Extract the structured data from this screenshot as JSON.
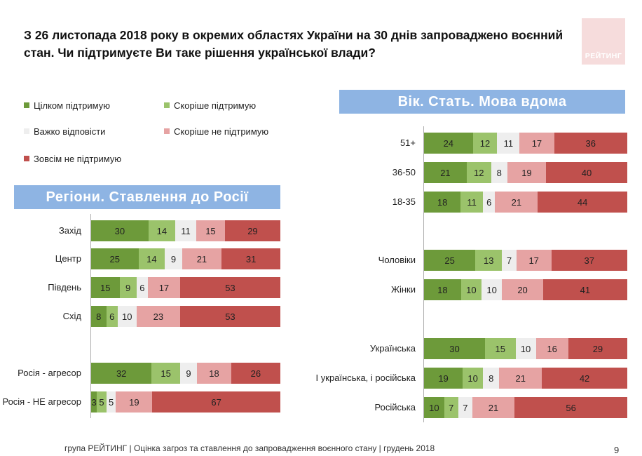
{
  "title": "З 26 листопада 2018 року в окремих областях України на 30 днів запроваджено воєнний стан. Чи підтримуєте Ви таке рішення української влади?",
  "logo_text": "РЕЙТИНГ",
  "legend": [
    {
      "label": "Цілком підтримую",
      "color": "#6d9a3a"
    },
    {
      "label": "Скоріше підтримую",
      "color": "#9bc36b"
    },
    {
      "label": "Важко відповісти",
      "color": "#eeeeee"
    },
    {
      "label": "Скоріше  не підтримую",
      "color": "#e6a3a3"
    },
    {
      "label": "Зовсім не підтримую",
      "color": "#c0504d"
    }
  ],
  "left_header": "Регіони. Ставлення до Росії",
  "right_header": "Вік. Стать. Мова вдома",
  "chart_data": [
    {
      "type": "bar",
      "orientation": "horizontal-stacked",
      "title": "Регіони. Ставлення до Росії",
      "series_names": [
        "Цілком підтримую",
        "Скоріше підтримую",
        "Важко відповісти",
        "Скоріше  не підтримую",
        "Зовсім не підтримую"
      ],
      "colors": [
        "#6d9a3a",
        "#9bc36b",
        "#eeeeee",
        "#e6a3a3",
        "#c0504d"
      ],
      "rows": [
        {
          "label": "Захід",
          "values": [
            30,
            14,
            11,
            15,
            29
          ]
        },
        {
          "label": "Центр",
          "values": [
            25,
            14,
            9,
            21,
            31
          ]
        },
        {
          "label": "Південь",
          "values": [
            15,
            9,
            6,
            17,
            53
          ]
        },
        {
          "label": "Схід",
          "values": [
            8,
            6,
            10,
            23,
            53
          ]
        },
        {
          "label": "Росія - агресор",
          "values": [
            32,
            15,
            9,
            18,
            26
          ]
        },
        {
          "label": "Росія - НЕ агресор",
          "values": [
            3,
            5,
            5,
            19,
            67
          ]
        }
      ]
    },
    {
      "type": "bar",
      "orientation": "horizontal-stacked",
      "title": "Вік. Стать. Мова вдома",
      "series_names": [
        "Цілком підтримую",
        "Скоріше підтримую",
        "Важко відповісти",
        "Скоріше  не підтримую",
        "Зовсім не підтримую"
      ],
      "colors": [
        "#6d9a3a",
        "#9bc36b",
        "#eeeeee",
        "#e6a3a3",
        "#c0504d"
      ],
      "rows": [
        {
          "label": "51+",
          "values": [
            24,
            12,
            11,
            17,
            36
          ]
        },
        {
          "label": "36-50",
          "values": [
            21,
            12,
            8,
            19,
            40
          ]
        },
        {
          "label": "18-35",
          "values": [
            18,
            11,
            6,
            21,
            44
          ]
        },
        {
          "label": "Чоловіки",
          "values": [
            25,
            13,
            7,
            17,
            37
          ]
        },
        {
          "label": "Жінки",
          "values": [
            18,
            10,
            10,
            20,
            41
          ]
        },
        {
          "label": "Українська",
          "values": [
            30,
            15,
            10,
            16,
            29
          ]
        },
        {
          "label": "І українська, і російська",
          "values": [
            19,
            10,
            8,
            21,
            42
          ]
        },
        {
          "label": "Російська",
          "values": [
            10,
            7,
            7,
            21,
            56
          ]
        }
      ]
    }
  ],
  "footer": "група РЕЙТИНГ | Оцінка загроз та ставлення до запровадження воєнного стану | грудень 2018",
  "page_number": "9"
}
